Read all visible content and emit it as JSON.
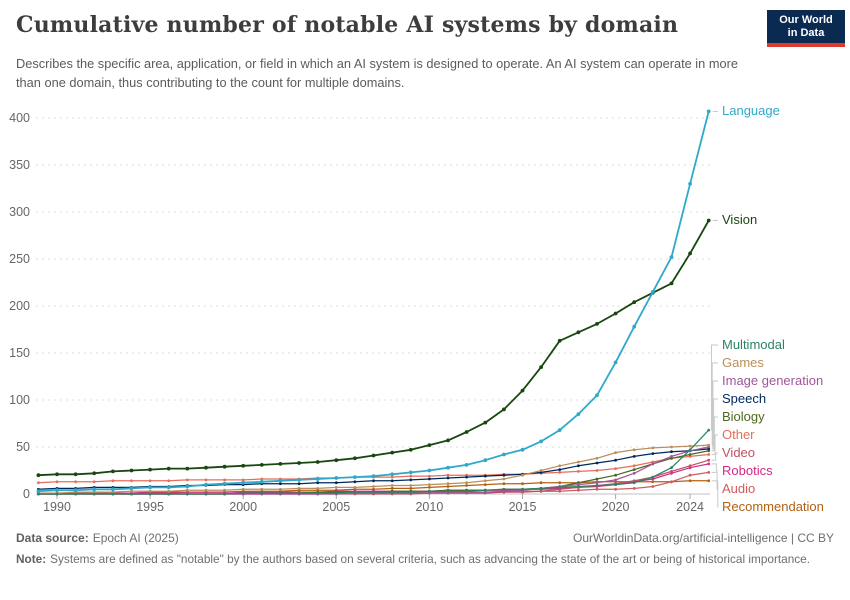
{
  "header": {
    "title": "Cumulative number of notable AI systems by domain",
    "subtitle": "Describes the specific area, application, or field in which an AI system is designed to operate. An AI system can operate in more than one domain, thus contributing to the count for multiple domains.",
    "logo_line1": "Our World",
    "logo_line2": "in Data",
    "logo_bg": "#0a2a52",
    "logo_stripe": "#dc3a2f"
  },
  "footer": {
    "datasource_label": "Data source:",
    "datasource_value": "Epoch AI (2025)",
    "url_text": "OurWorldinData.org/artificial-intelligence | CC BY",
    "note_label": "Note:",
    "note_text": "Systems are defined as \"notable\" by the authors based on several criteria, such as advancing the state of the art or being of historical importance."
  },
  "chart_data": {
    "type": "line",
    "title": "Cumulative number of notable AI systems by domain",
    "xlabel": "",
    "ylabel": "",
    "xlim": [
      1989,
      2025
    ],
    "ylim": [
      0,
      420
    ],
    "grid": "horizontal-dashed",
    "legend_position": "right-edge-labels",
    "yticks": [
      0,
      50,
      100,
      150,
      200,
      250,
      300,
      350,
      400
    ],
    "xticks": [
      1990,
      1995,
      2000,
      2005,
      2010,
      2015,
      2020,
      2024
    ],
    "x": [
      1989,
      1990,
      1991,
      1992,
      1993,
      1994,
      1995,
      1996,
      1997,
      1998,
      1999,
      2000,
      2001,
      2002,
      2003,
      2004,
      2005,
      2006,
      2007,
      2008,
      2009,
      2010,
      2011,
      2012,
      2013,
      2014,
      2015,
      2016,
      2017,
      2018,
      2019,
      2020,
      2021,
      2022,
      2023,
      2024,
      2025
    ],
    "series": [
      {
        "name": "Language",
        "color": "#2fa9c9",
        "values": [
          3,
          4,
          4,
          5,
          5,
          6,
          7,
          7,
          8,
          10,
          11,
          12,
          13,
          14,
          15,
          16,
          17,
          18,
          19,
          21,
          23,
          25,
          28,
          31,
          36,
          42,
          47,
          56,
          68,
          85,
          105,
          140,
          178,
          215,
          252,
          330,
          407
        ]
      },
      {
        "name": "Vision",
        "color": "#18470f",
        "values": [
          20,
          21,
          21,
          22,
          24,
          25,
          26,
          27,
          27,
          28,
          29,
          30,
          31,
          32,
          33,
          34,
          36,
          38,
          41,
          44,
          47,
          52,
          57,
          66,
          76,
          90,
          110,
          135,
          163,
          172,
          181,
          192,
          204,
          214,
          224,
          256,
          291
        ]
      },
      {
        "name": "Multimodal",
        "color": "#2c8465",
        "values": [
          0,
          0,
          0,
          0,
          0,
          0,
          0,
          0,
          0,
          0,
          0,
          1,
          1,
          1,
          1,
          1,
          1,
          2,
          2,
          2,
          2,
          3,
          3,
          3,
          4,
          5,
          5,
          6,
          7,
          8,
          9,
          10,
          12,
          18,
          28,
          47,
          68
        ]
      },
      {
        "name": "Games",
        "color": "#bc8e5a",
        "values": [
          1,
          1,
          2,
          2,
          2,
          3,
          3,
          3,
          4,
          4,
          4,
          5,
          5,
          5,
          6,
          6,
          7,
          7,
          8,
          9,
          9,
          10,
          11,
          12,
          14,
          16,
          20,
          25,
          30,
          34,
          38,
          44,
          47,
          49,
          50,
          51,
          52
        ]
      },
      {
        "name": "Image generation",
        "color": "#a2559c",
        "values": [
          0,
          0,
          0,
          0,
          0,
          0,
          0,
          0,
          0,
          0,
          0,
          0,
          0,
          0,
          0,
          0,
          0,
          1,
          1,
          1,
          1,
          1,
          2,
          2,
          2,
          3,
          4,
          6,
          8,
          10,
          12,
          15,
          22,
          32,
          40,
          46,
          50
        ]
      },
      {
        "name": "Speech",
        "color": "#00295b",
        "values": [
          5,
          6,
          6,
          7,
          7,
          7,
          8,
          8,
          9,
          9,
          10,
          10,
          11,
          11,
          11,
          12,
          12,
          13,
          14,
          14,
          15,
          16,
          17,
          18,
          19,
          20,
          21,
          23,
          26,
          30,
          33,
          36,
          40,
          43,
          45,
          46,
          48
        ]
      },
      {
        "name": "Biology",
        "color": "#4c6a1f",
        "values": [
          0,
          0,
          0,
          0,
          0,
          0,
          0,
          0,
          0,
          0,
          0,
          1,
          1,
          1,
          1,
          2,
          2,
          2,
          2,
          3,
          3,
          3,
          4,
          4,
          4,
          5,
          5,
          6,
          8,
          12,
          16,
          20,
          26,
          32,
          38,
          42,
          46
        ]
      },
      {
        "name": "Other",
        "color": "#e56e5a",
        "values": [
          12,
          13,
          13,
          13,
          14,
          14,
          14,
          14,
          15,
          15,
          15,
          15,
          16,
          16,
          16,
          17,
          17,
          18,
          18,
          18,
          19,
          19,
          20,
          20,
          20,
          21,
          21,
          22,
          23,
          24,
          25,
          27,
          30,
          34,
          38,
          40,
          42
        ]
      },
      {
        "name": "Video",
        "color": "#c15065",
        "values": [
          0,
          0,
          0,
          0,
          0,
          0,
          0,
          0,
          0,
          0,
          0,
          0,
          0,
          0,
          0,
          0,
          0,
          0,
          0,
          0,
          0,
          1,
          1,
          1,
          1,
          2,
          2,
          3,
          5,
          7,
          9,
          11,
          14,
          18,
          24,
          30,
          36
        ]
      },
      {
        "name": "Robotics",
        "color": "#d42a85",
        "values": [
          1,
          1,
          1,
          1,
          1,
          1,
          2,
          2,
          2,
          2,
          2,
          2,
          2,
          2,
          2,
          2,
          3,
          3,
          3,
          3,
          3,
          3,
          4,
          4,
          4,
          4,
          5,
          5,
          6,
          7,
          8,
          10,
          13,
          16,
          22,
          28,
          32
        ]
      },
      {
        "name": "Audio",
        "color": "#ce5c5c",
        "values": [
          0,
          0,
          0,
          0,
          0,
          0,
          0,
          0,
          0,
          0,
          0,
          0,
          0,
          0,
          0,
          0,
          1,
          1,
          1,
          1,
          1,
          2,
          2,
          2,
          2,
          2,
          3,
          3,
          3,
          4,
          5,
          5,
          6,
          8,
          13,
          20,
          23
        ]
      },
      {
        "name": "Recommendation",
        "color": "#b16214",
        "values": [
          0,
          0,
          0,
          1,
          1,
          1,
          1,
          1,
          2,
          2,
          2,
          3,
          3,
          3,
          4,
          4,
          4,
          5,
          5,
          6,
          6,
          7,
          8,
          9,
          10,
          11,
          11,
          12,
          12,
          12,
          13,
          13,
          13,
          13,
          13,
          14,
          14
        ]
      }
    ]
  }
}
